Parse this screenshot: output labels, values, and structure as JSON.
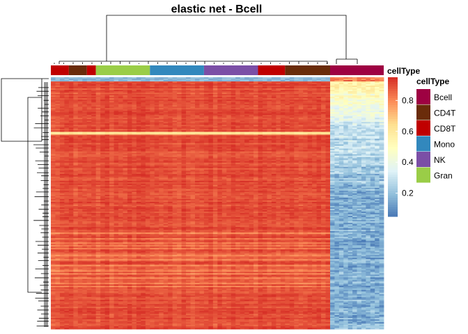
{
  "chart_data": {
    "type": "heatmap",
    "title": "elastic net - Bcell",
    "value_range": [
      0.05,
      0.95
    ],
    "color_scale": {
      "name": "RdYlBu (reversed)",
      "stops": [
        "#4575b4",
        "#91bfdb",
        "#e0f3f8",
        "#ffffbf",
        "#fee090",
        "#fc8d59",
        "#d73027"
      ]
    },
    "color_legend": {
      "title": "cellType",
      "ticks": [
        0.2,
        0.4,
        0.6,
        0.8
      ]
    },
    "annotation": {
      "title": "cellType",
      "legend": [
        {
          "label": "Bcell",
          "color": "#9e0142"
        },
        {
          "label": "CD4T",
          "color": "#6a2c0a"
        },
        {
          "label": "CD8T",
          "color": "#c00000"
        },
        {
          "label": "Mono",
          "color": "#3288bd"
        },
        {
          "label": "NK",
          "color": "#7b4fa6"
        },
        {
          "label": "Gran",
          "color": "#9acd47"
        }
      ],
      "column_groups": [
        {
          "cellType": "CD8T",
          "columns": 4
        },
        {
          "cellType": "CD4T",
          "columns": 4
        },
        {
          "cellType": "CD8T",
          "columns": 2
        },
        {
          "cellType": "Gran",
          "columns": 12
        },
        {
          "cellType": "Mono",
          "columns": 12
        },
        {
          "cellType": "NK",
          "columns": 12
        },
        {
          "cellType": "CD8T",
          "columns": 6
        },
        {
          "cellType": "CD4T",
          "columns": 10
        },
        {
          "cellType": "Bcell",
          "columns": 12
        }
      ]
    },
    "blocks": [
      {
        "cellType": "non-Bcell",
        "mean_value": 0.88,
        "note": "red"
      },
      {
        "cellType": "Bcell",
        "mean_value_top": 0.55,
        "mean_value_bottom": 0.15
      }
    ],
    "row_dendrogram": true,
    "column_dendrogram": true
  }
}
